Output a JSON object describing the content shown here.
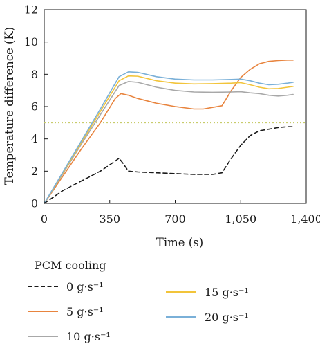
{
  "chart_data": {
    "type": "line",
    "xlabel": "Time (s)",
    "ylabel": "Temperature difference (K)",
    "xlim": [
      0,
      1400
    ],
    "ylim": [
      0,
      12
    ],
    "xticks": [
      0,
      350,
      700,
      1050,
      1400
    ],
    "xtick_labels": [
      "0",
      "350",
      "700",
      "1,050",
      "1,400"
    ],
    "yticks": [
      0,
      2,
      4,
      6,
      8,
      10,
      12
    ],
    "ytick_labels": [
      "0",
      "2",
      "4",
      "6",
      "8",
      "10",
      "12"
    ],
    "grid": false,
    "reference_line": {
      "y": 5,
      "style": "dotted",
      "color": "#c8cc6a"
    },
    "legend": {
      "title": "PCM cooling",
      "placement": "below",
      "columns": 2
    },
    "series": [
      {
        "name": "0 g·s⁻¹",
        "color": "#1a1a1a",
        "dash": "dashed",
        "x": [
          0,
          100,
          200,
          300,
          370,
          400,
          420,
          450,
          500,
          600,
          700,
          800,
          900,
          950,
          1000,
          1050,
          1100,
          1150,
          1200,
          1250,
          1300,
          1330
        ],
        "y": [
          0,
          0.8,
          1.4,
          2.0,
          2.55,
          2.8,
          2.5,
          2.0,
          1.95,
          1.9,
          1.85,
          1.8,
          1.8,
          1.9,
          2.8,
          3.6,
          4.2,
          4.5,
          4.6,
          4.7,
          4.75,
          4.75
        ]
      },
      {
        "name": "5 g·s⁻¹",
        "color": "#e8843e",
        "dash": "solid",
        "x": [
          0,
          100,
          200,
          300,
          380,
          410,
          450,
          500,
          600,
          700,
          800,
          850,
          900,
          950,
          1000,
          1050,
          1100,
          1150,
          1200,
          1250,
          1300,
          1330
        ],
        "y": [
          0,
          1.7,
          3.4,
          5.0,
          6.5,
          6.8,
          6.7,
          6.5,
          6.2,
          6.0,
          5.85,
          5.85,
          5.95,
          6.05,
          7.0,
          7.8,
          8.3,
          8.65,
          8.8,
          8.85,
          8.88,
          8.88
        ]
      },
      {
        "name": "10 g·s⁻¹",
        "color": "#a8a8a8",
        "dash": "solid",
        "x": [
          0,
          100,
          200,
          300,
          400,
          450,
          500,
          600,
          700,
          800,
          900,
          1000,
          1050,
          1100,
          1150,
          1200,
          1250,
          1300,
          1330
        ],
        "y": [
          0,
          1.85,
          3.7,
          5.5,
          7.3,
          7.55,
          7.5,
          7.2,
          7.0,
          6.9,
          6.88,
          6.9,
          6.92,
          6.85,
          6.8,
          6.7,
          6.65,
          6.7,
          6.75
        ]
      },
      {
        "name": "15 g·s⁻¹",
        "color": "#f2c43a",
        "dash": "solid",
        "x": [
          0,
          100,
          200,
          300,
          400,
          450,
          500,
          600,
          700,
          800,
          900,
          1000,
          1050,
          1100,
          1150,
          1200,
          1250,
          1300,
          1330
        ],
        "y": [
          0,
          1.9,
          3.8,
          5.7,
          7.6,
          7.9,
          7.88,
          7.6,
          7.45,
          7.4,
          7.42,
          7.45,
          7.48,
          7.35,
          7.2,
          7.1,
          7.12,
          7.2,
          7.25
        ]
      },
      {
        "name": "20 g·s⁻¹",
        "color": "#7ab0d8",
        "dash": "solid",
        "x": [
          0,
          100,
          200,
          300,
          400,
          450,
          500,
          600,
          700,
          800,
          900,
          1000,
          1050,
          1100,
          1150,
          1200,
          1250,
          1300,
          1330
        ],
        "y": [
          0,
          1.95,
          3.9,
          5.85,
          7.85,
          8.15,
          8.12,
          7.85,
          7.7,
          7.65,
          7.65,
          7.68,
          7.7,
          7.6,
          7.45,
          7.35,
          7.38,
          7.45,
          7.5
        ]
      }
    ]
  }
}
